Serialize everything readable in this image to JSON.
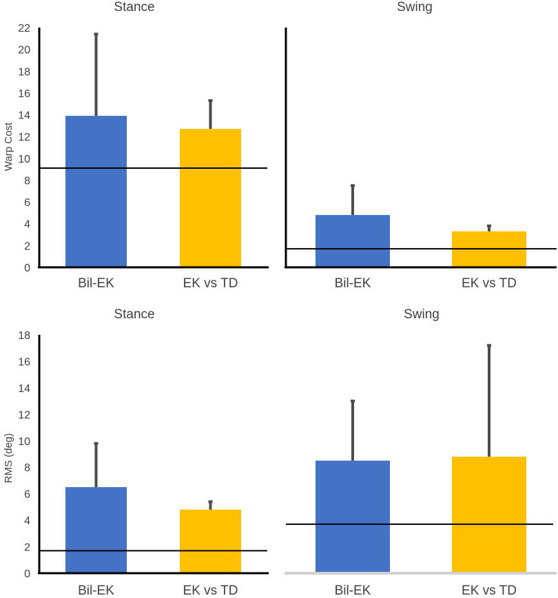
{
  "chart_data": [
    {
      "type": "bar",
      "title": "Stance",
      "ylabel": "Warp Cost",
      "xlabel": "",
      "ylim": [
        0,
        22
      ],
      "yticks": [
        0,
        2,
        4,
        6,
        8,
        10,
        12,
        14,
        16,
        18,
        20,
        22
      ],
      "categories": [
        "Bil-EK",
        "EK vs TD"
      ],
      "values": [
        13.9,
        12.7
      ],
      "error_upper": [
        21.4,
        15.3
      ],
      "bar_colors": [
        "#4472C4",
        "#FFC000"
      ],
      "reference_line": 9.1
    },
    {
      "type": "bar",
      "title": "Swing",
      "ylabel": "",
      "xlabel": "",
      "ylim": [
        0,
        22
      ],
      "yticks": [],
      "categories": [
        "Bil-EK",
        "EK vs TD"
      ],
      "values": [
        4.8,
        3.3
      ],
      "error_upper": [
        7.5,
        3.8
      ],
      "bar_colors": [
        "#4472C4",
        "#FFC000"
      ],
      "reference_line": 1.7
    },
    {
      "type": "bar",
      "title": "Stance",
      "ylabel": "RMS (deg)",
      "xlabel": "",
      "ylim": [
        0,
        18
      ],
      "yticks": [
        0,
        2,
        4,
        6,
        8,
        10,
        12,
        14,
        16,
        18
      ],
      "categories": [
        "Bil-EK",
        "EK vs TD"
      ],
      "values": [
        6.5,
        4.8
      ],
      "error_upper": [
        9.8,
        5.4
      ],
      "bar_colors": [
        "#4472C4",
        "#FFC000"
      ],
      "reference_line": 1.7
    },
    {
      "type": "bar",
      "title": "Swing",
      "ylabel": "",
      "xlabel": "",
      "ylim": [
        0,
        18
      ],
      "yticks": [],
      "categories": [
        "Bil-EK",
        "EK vs TD"
      ],
      "values": [
        8.5,
        8.8
      ],
      "error_upper": [
        13.0,
        17.2
      ],
      "bar_colors": [
        "#4472C4",
        "#FFC000"
      ],
      "reference_line": 3.7
    }
  ]
}
